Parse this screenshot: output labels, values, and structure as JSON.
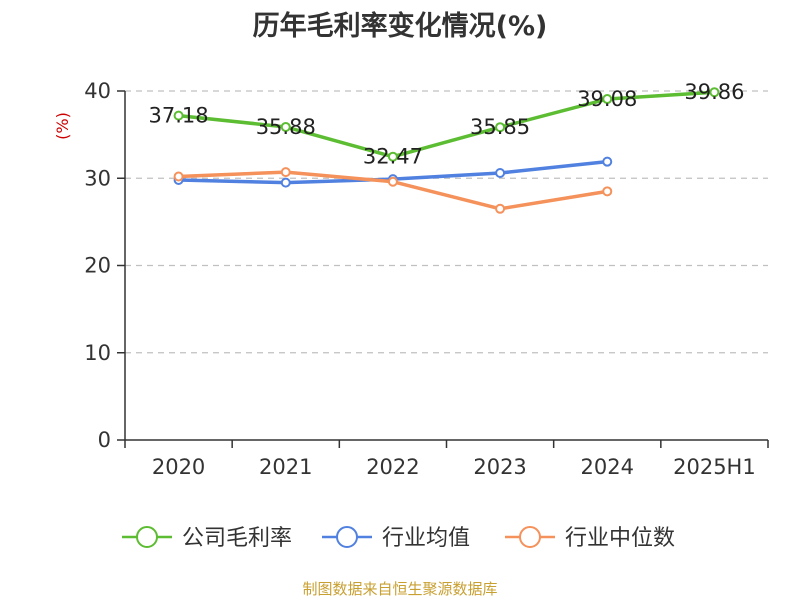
{
  "title": "历年毛利率变化情况(%)",
  "source": "制图数据来自恒生聚源数据库",
  "colors": {
    "company": "#5cbd32",
    "industry_avg": "#5181e0",
    "industry_median": "#f5915a",
    "ylabel": "#cc0000",
    "grid": "#c0c0c0",
    "axis": "#333333"
  },
  "chart_data": {
    "type": "line",
    "title": "历年毛利率变化情况(%)",
    "xlabel": "",
    "ylabel": "(%)",
    "categories": [
      "2020",
      "2021",
      "2022",
      "2023",
      "2024",
      "2025H1"
    ],
    "ylim": [
      0,
      40
    ],
    "yticks": [
      0,
      10,
      20,
      30,
      40
    ],
    "grid": true,
    "legend_position": "bottom",
    "series": [
      {
        "name": "公司毛利率",
        "values": [
          37.18,
          35.88,
          32.47,
          35.85,
          39.08,
          39.86
        ],
        "labels": [
          "37.18",
          "35.88",
          "32.47",
          "35.85",
          "39.08",
          "39.86"
        ]
      },
      {
        "name": "行业均值",
        "values": [
          29.8,
          29.5,
          29.9,
          30.6,
          31.9,
          null
        ]
      },
      {
        "name": "行业中位数",
        "values": [
          30.2,
          30.7,
          29.6,
          26.5,
          28.5,
          null
        ]
      }
    ]
  }
}
